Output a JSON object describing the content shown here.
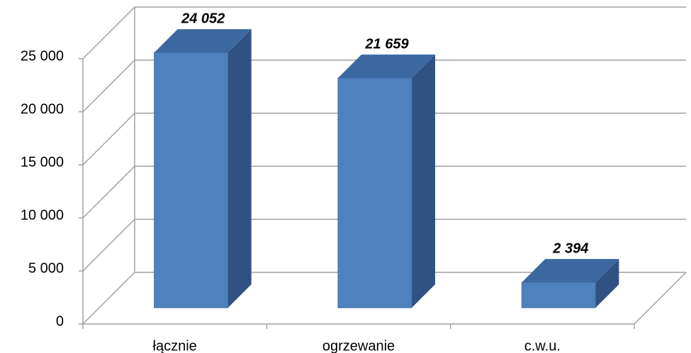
{
  "chart_data": {
    "type": "bar3d",
    "categories": [
      "łącznie",
      "ogrzewanie",
      "c.w.u."
    ],
    "values": [
      24052,
      21659,
      2394
    ],
    "value_labels": [
      "24 052",
      "21 659",
      "2 394"
    ],
    "color": "#4f81bd",
    "ylim": [
      0,
      25000
    ],
    "yticks": [
      0,
      {
        "value": 5000,
        "label": "5 000"
      },
      {
        "value": 10000,
        "label": "10 000"
      },
      {
        "value": 15000,
        "label": "15 000"
      },
      {
        "value": 20000,
        "label": "20 000"
      },
      {
        "value": 25000,
        "label": "25 000"
      }
    ],
    "grid": true
  }
}
